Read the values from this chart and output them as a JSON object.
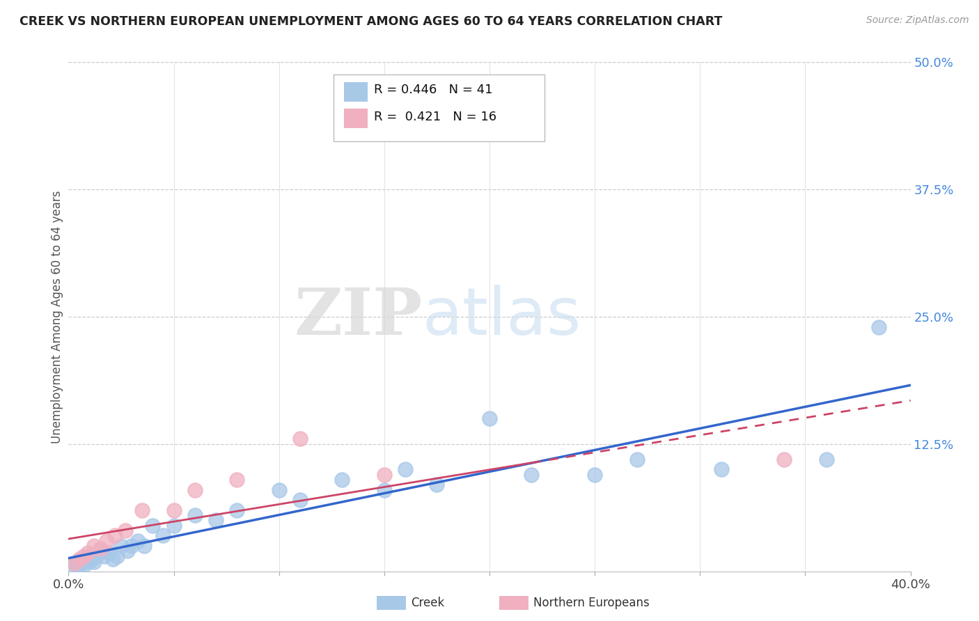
{
  "title": "CREEK VS NORTHERN EUROPEAN UNEMPLOYMENT AMONG AGES 60 TO 64 YEARS CORRELATION CHART",
  "source": "Source: ZipAtlas.com",
  "ylabel": "Unemployment Among Ages 60 to 64 years",
  "xlim": [
    0.0,
    0.4
  ],
  "ylim": [
    0.0,
    0.5
  ],
  "xticks": [
    0.0,
    0.05,
    0.1,
    0.15,
    0.2,
    0.25,
    0.3,
    0.35,
    0.4
  ],
  "yticks": [
    0.0,
    0.125,
    0.25,
    0.375,
    0.5
  ],
  "xticklabels": [
    "0.0%",
    "",
    "",
    "",
    "",
    "",
    "",
    "",
    "40.0%"
  ],
  "yticklabels": [
    "",
    "12.5%",
    "25.0%",
    "37.5%",
    "50.0%"
  ],
  "creek_R": 0.446,
  "creek_N": 41,
  "northern_R": 0.421,
  "northern_N": 16,
  "creek_color": "#a8c8e8",
  "northern_color": "#f0b0c0",
  "creek_line_color": "#3366cc",
  "northern_line_color": "#cc4466",
  "watermark_zip": "ZIP",
  "watermark_atlas": "atlas",
  "creek_x": [
    0.002,
    0.003,
    0.004,
    0.005,
    0.006,
    0.007,
    0.008,
    0.009,
    0.01,
    0.011,
    0.012,
    0.013,
    0.015,
    0.017,
    0.019,
    0.021,
    0.023,
    0.025,
    0.028,
    0.03,
    0.033,
    0.036,
    0.04,
    0.045,
    0.05,
    0.06,
    0.07,
    0.08,
    0.1,
    0.11,
    0.13,
    0.15,
    0.16,
    0.175,
    0.2,
    0.22,
    0.25,
    0.27,
    0.31,
    0.36,
    0.385
  ],
  "creek_y": [
    0.005,
    0.008,
    0.006,
    0.01,
    0.008,
    0.012,
    0.007,
    0.015,
    0.01,
    0.012,
    0.009,
    0.015,
    0.02,
    0.015,
    0.018,
    0.012,
    0.015,
    0.025,
    0.02,
    0.025,
    0.03,
    0.025,
    0.045,
    0.035,
    0.045,
    0.055,
    0.05,
    0.06,
    0.08,
    0.07,
    0.09,
    0.08,
    0.1,
    0.085,
    0.15,
    0.095,
    0.095,
    0.11,
    0.1,
    0.11,
    0.24
  ],
  "northern_x": [
    0.003,
    0.005,
    0.007,
    0.009,
    0.012,
    0.015,
    0.018,
    0.022,
    0.027,
    0.035,
    0.05,
    0.06,
    0.08,
    0.11,
    0.15,
    0.34
  ],
  "northern_y": [
    0.008,
    0.012,
    0.015,
    0.018,
    0.025,
    0.022,
    0.03,
    0.035,
    0.04,
    0.06,
    0.06,
    0.08,
    0.09,
    0.13,
    0.095,
    0.11
  ]
}
